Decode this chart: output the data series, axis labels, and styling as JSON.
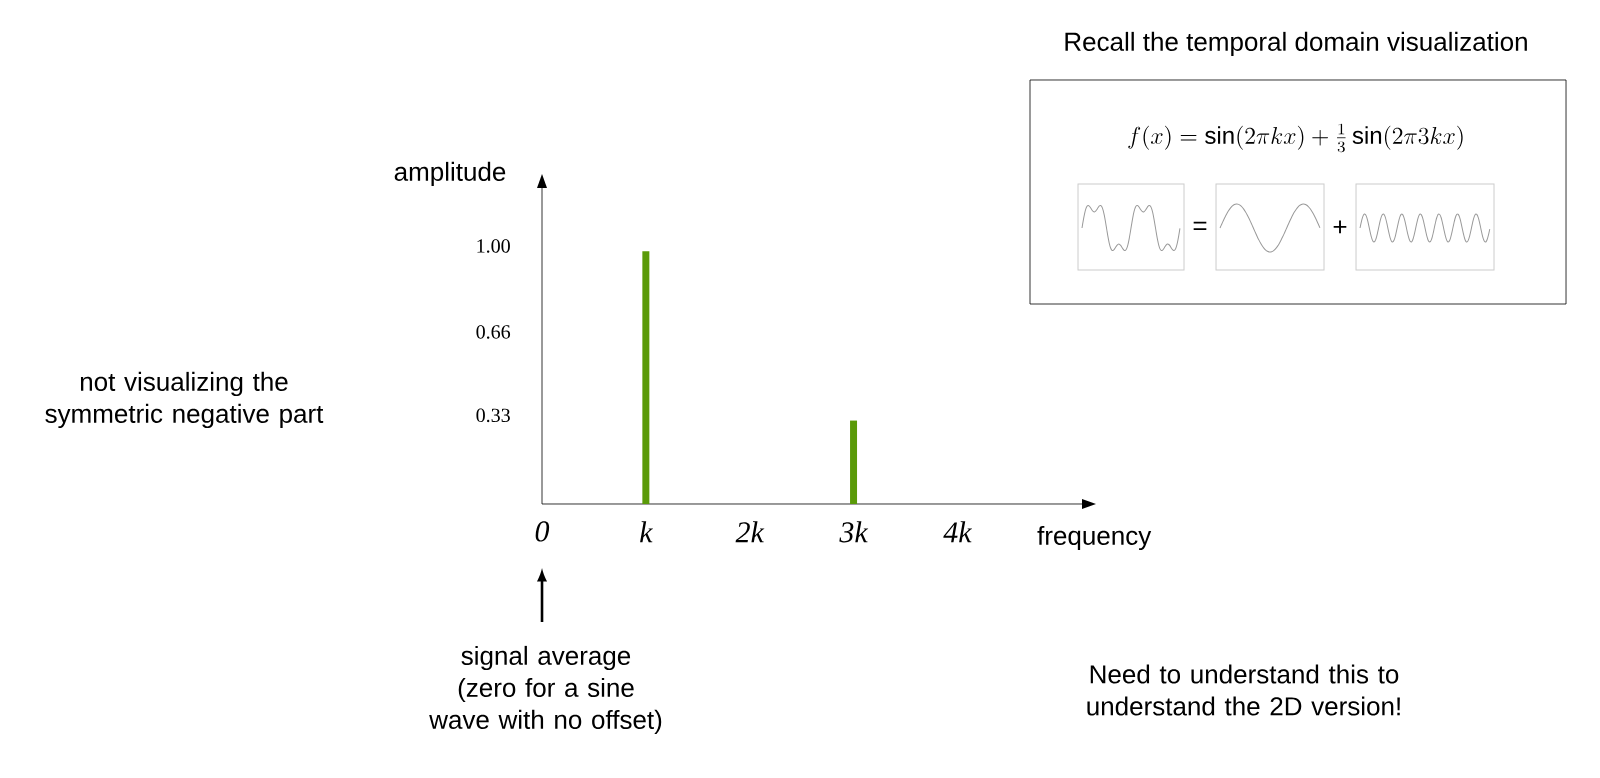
{
  "chart_data": {
    "type": "bar",
    "xlabel": "frequency",
    "ylabel": "amplitude",
    "x": [
      1,
      3
    ],
    "series": [
      {
        "color": "#5a9a08",
        "values": [
          1.0,
          0.33
        ]
      }
    ],
    "xlim": [
      0,
      5.2
    ],
    "ylim": [
      0,
      1.25
    ],
    "xticks": [
      0,
      {
        "value": 1,
        "label": "k"
      },
      {
        "value": 2,
        "label": "2k"
      },
      {
        "value": 3,
        "label": "3k"
      },
      {
        "value": 4,
        "label": "4k"
      }
    ],
    "yticks": [
      0.33,
      0.66,
      {
        "value": 1,
        "label": "1.00"
      }
    ],
    "grid": false,
    "annotations": [
      "Recall the temporal domain visualization",
      "f(x) = \\sin(2\\pi kx) + \\frac{1}{3}\\sin(2\\pi 3kx)",
      "=",
      "+",
      "not visualizing the symmetric negative part",
      "signal average (zero for a sine wave with no offset)",
      "Need to understand this to understand the 2D version!"
    ]
  }
}
